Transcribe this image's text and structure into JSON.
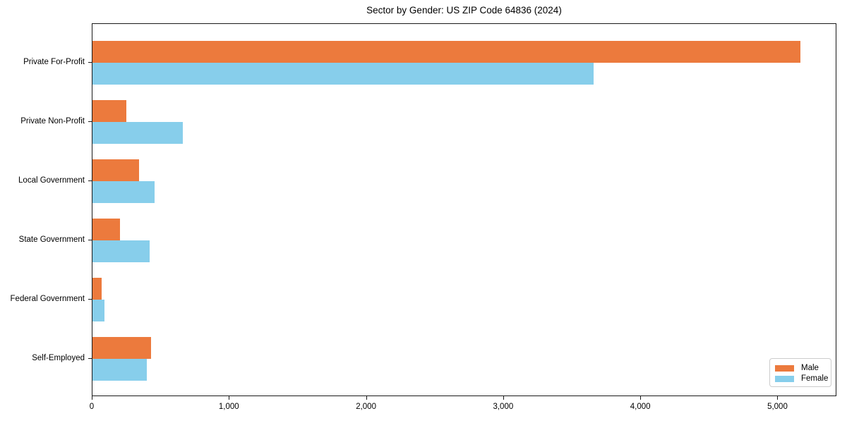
{
  "chart_data": {
    "type": "bar",
    "orientation": "horizontal",
    "title": "Sector by Gender: US ZIP Code 64836 (2024)",
    "categories": [
      "Private For-Profit",
      "Private Non-Profit",
      "Local Government",
      "State Government",
      "Federal Government",
      "Self-Employed"
    ],
    "series": [
      {
        "name": "Male",
        "color": "#EC7A3D",
        "values": [
          5170,
          250,
          340,
          200,
          65,
          430
        ]
      },
      {
        "name": "Female",
        "color": "#87CEEB",
        "values": [
          3660,
          660,
          455,
          420,
          90,
          395
        ]
      }
    ],
    "xlabel": "",
    "ylabel": "",
    "xlim": [
      0,
      5430
    ],
    "x_tick_values": [
      0,
      1000,
      2000,
      3000,
      4000,
      5000
    ],
    "x_tick_labels": [
      "0",
      "1,000",
      "2,000",
      "3,000",
      "4,000",
      "5,000"
    ],
    "grid": false,
    "legend": {
      "position": "lower right",
      "entries": [
        "Male",
        "Female"
      ]
    }
  },
  "colors": {
    "axis": "#1a1a1a",
    "legend_border": "#cccccc",
    "background": "#ffffff"
  }
}
